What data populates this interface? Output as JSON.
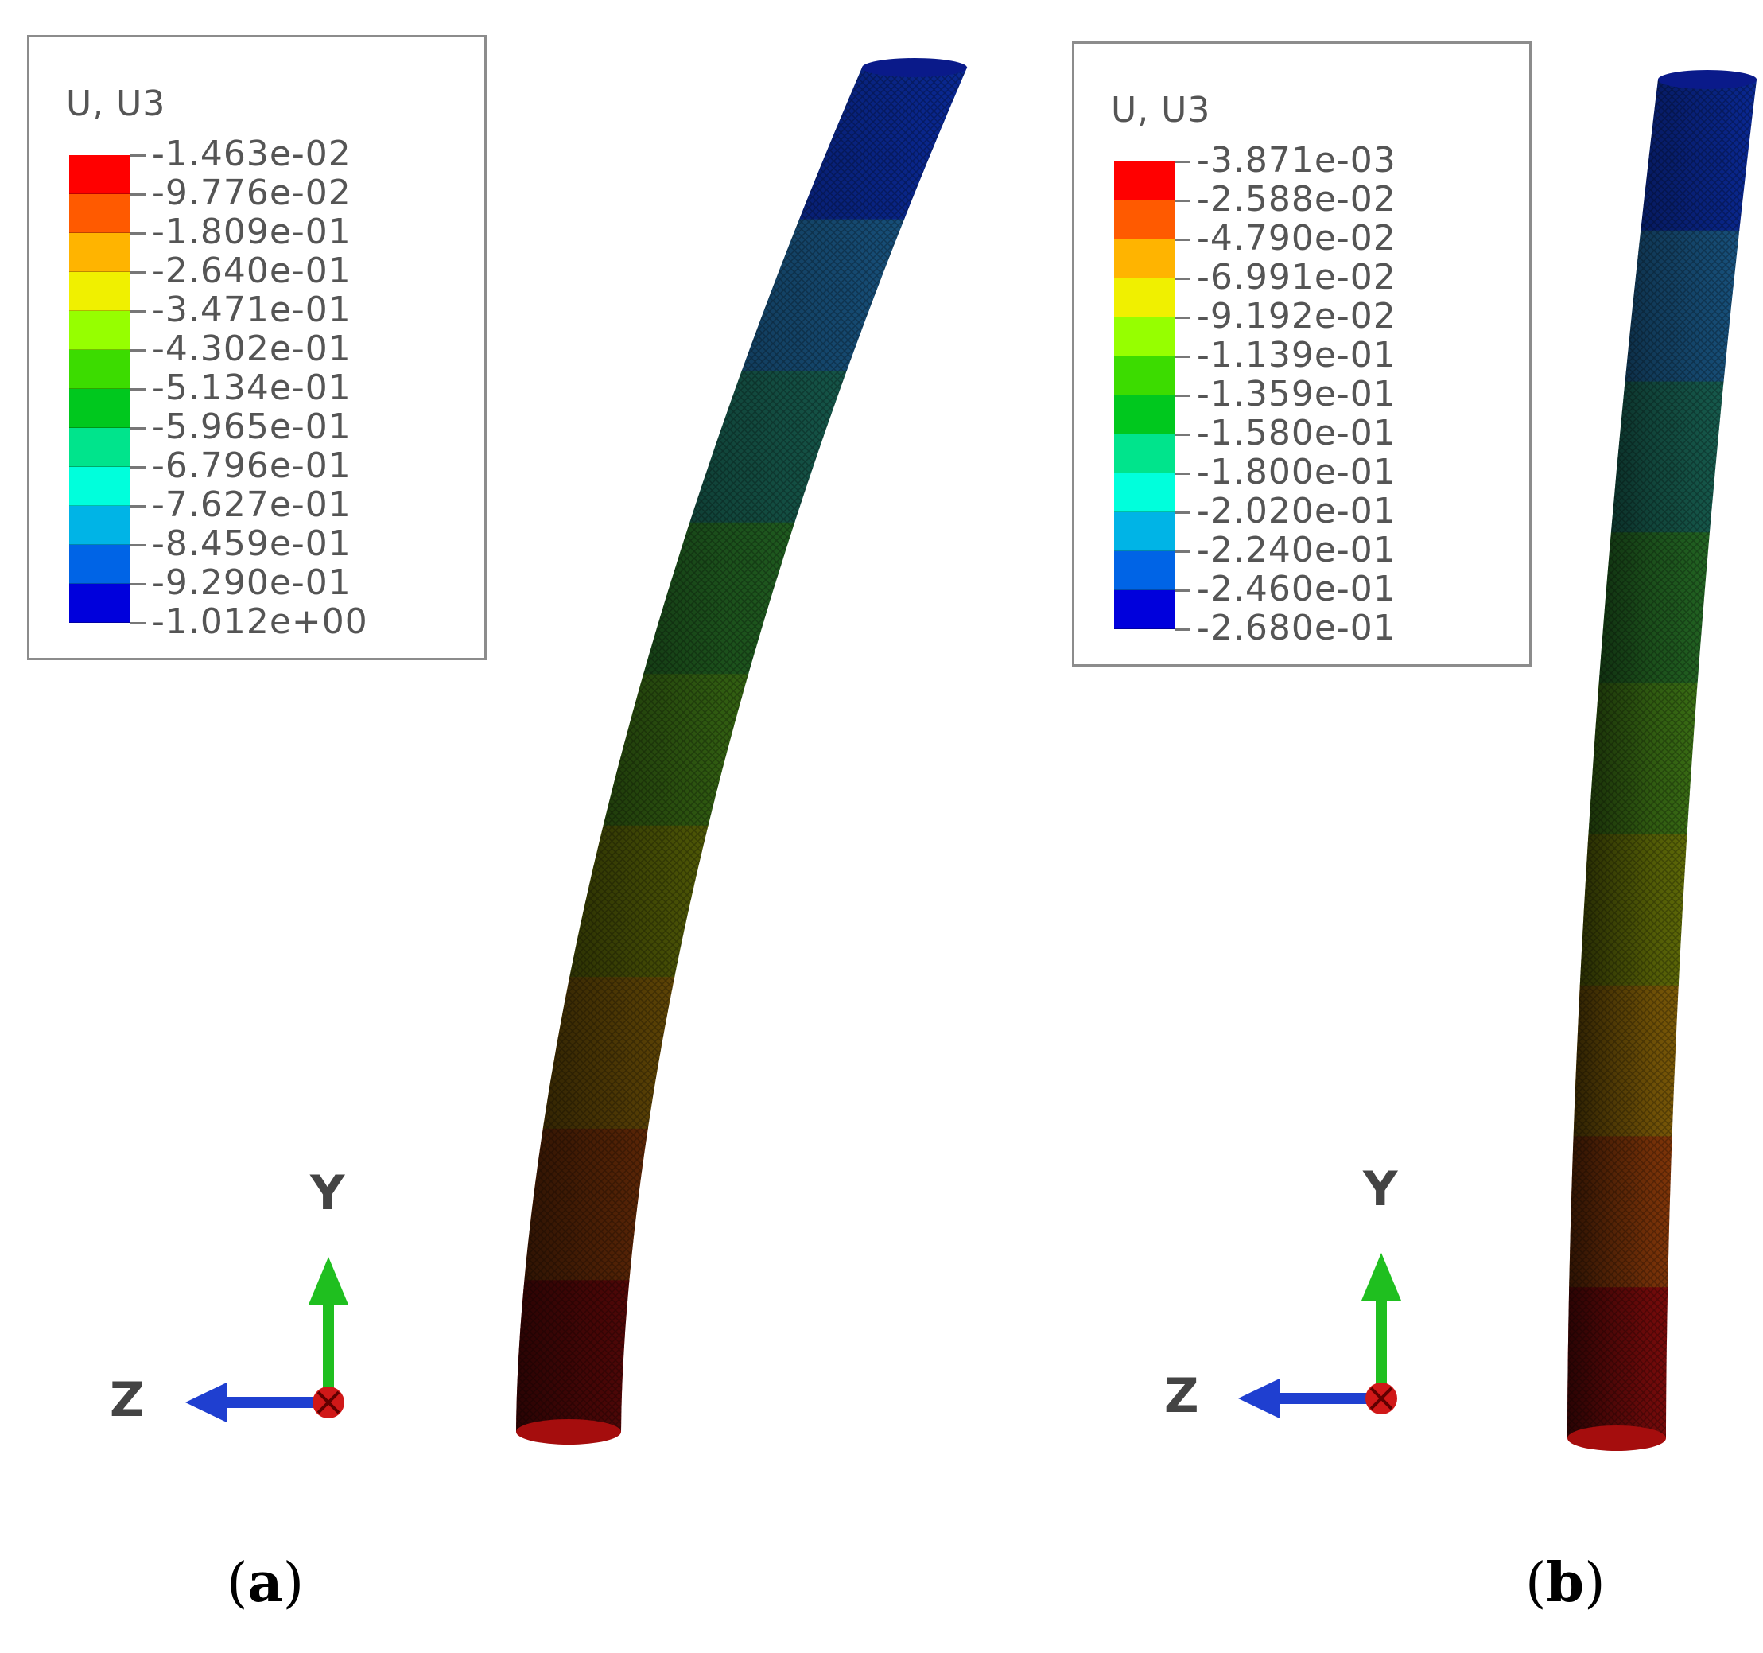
{
  "panels": [
    {
      "caption_letter": "a",
      "legend": {
        "title": "U, U3",
        "colors": [
          "#ff0000",
          "#ff5a00",
          "#ffb400",
          "#f0f000",
          "#96ff00",
          "#3cdc00",
          "#00c81e",
          "#00e48c",
          "#00ffdc",
          "#00b4e6",
          "#0064e6",
          "#0000dc"
        ],
        "ticks": [
          "-1.463e-02",
          "-9.776e-02",
          "-1.809e-01",
          "-2.640e-01",
          "-3.471e-01",
          "-4.302e-01",
          "-5.134e-01",
          "-5.965e-01",
          "-6.796e-01",
          "-7.627e-01",
          "-8.459e-01",
          "-9.290e-01",
          "-1.012e+00"
        ]
      },
      "triad": {
        "y_label": "Y",
        "z_label": "Z"
      }
    },
    {
      "caption_letter": "b",
      "legend": {
        "title": "U, U3",
        "colors": [
          "#ff0000",
          "#ff5a00",
          "#ffb400",
          "#f0f000",
          "#96ff00",
          "#3cdc00",
          "#00c81e",
          "#00e48c",
          "#00ffdc",
          "#00b4e6",
          "#0064e6",
          "#0000dc"
        ],
        "ticks": [
          "-3.871e-03",
          "-2.588e-02",
          "-4.790e-02",
          "-6.991e-02",
          "-9.192e-02",
          "-1.139e-01",
          "-1.359e-01",
          "-1.580e-01",
          "-1.800e-01",
          "-2.020e-01",
          "-2.240e-01",
          "-2.460e-01",
          "-2.680e-01"
        ]
      },
      "triad": {
        "y_label": "Y",
        "z_label": "Z"
      }
    }
  ],
  "beam_colors": {
    "a": [
      "#aa0f0f",
      "#b24a0c",
      "#a87a0a",
      "#7d8c0a",
      "#4a8c1a",
      "#2a7a2a",
      "#1a6a5a",
      "#1a5a8a",
      "#0a2a9a"
    ],
    "b": [
      "#aa0f0f",
      "#b24a0c",
      "#a87a0a",
      "#7d8c0a",
      "#4a8c1a",
      "#2a7a2a",
      "#1a6a5a",
      "#1a5a8a",
      "#0a2a9a"
    ]
  }
}
